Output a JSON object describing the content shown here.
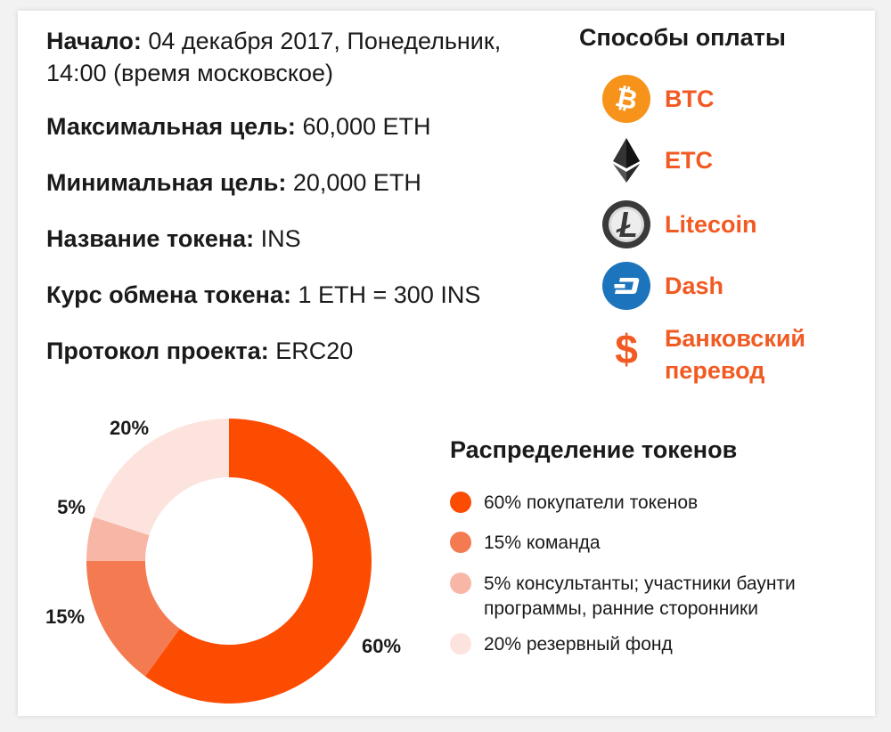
{
  "info": {
    "start_label": "Начало:",
    "start_value": "04 декабря 2017, Понедельник, 14:00 (время московское)",
    "max_label": "Максимальная цель:",
    "max_value": "60,000 ETH",
    "min_label": "Минимальная цель:",
    "min_value": "20,000 ETH",
    "token_name_label": "Название токена:",
    "token_name_value": "INS",
    "rate_label": "Курс обмена токена:",
    "rate_value": "1 ETH = 300 INS",
    "protocol_label": "Протокол проекта:",
    "protocol_value": "ERC20"
  },
  "payment": {
    "title": "Способы оплаты",
    "methods": [
      {
        "label": "BTC",
        "icon": "bitcoin-icon",
        "color": "#f7931a"
      },
      {
        "label": "ETC",
        "icon": "ethereum-icon",
        "color": "#2b2b2b"
      },
      {
        "label": "Litecoin",
        "icon": "litecoin-icon",
        "color": "#3c3c3c"
      },
      {
        "label": "Dash",
        "icon": "dash-icon",
        "color": "#1c75bc"
      },
      {
        "label": "Банковский перевод",
        "icon": "dollar-icon",
        "color": "#f15a22"
      }
    ],
    "accent_color": "#f15a22"
  },
  "chart_data": {
    "type": "pie",
    "title": "Распределение токенов",
    "donut": true,
    "slices": [
      {
        "value": 60,
        "label": "60%",
        "legend": "60% покупатели токенов",
        "color": "#fc4c02"
      },
      {
        "value": 15,
        "label": "15%",
        "legend": "15% команда",
        "color": "#f47a52"
      },
      {
        "value": 5,
        "label": "5%",
        "legend": "5% консультанты; участники баунти программы, ранние сторонники",
        "color": "#f8b7a6"
      },
      {
        "value": 20,
        "label": "20%",
        "legend": "20% резервный фонд",
        "color": "#fde3de"
      }
    ]
  }
}
